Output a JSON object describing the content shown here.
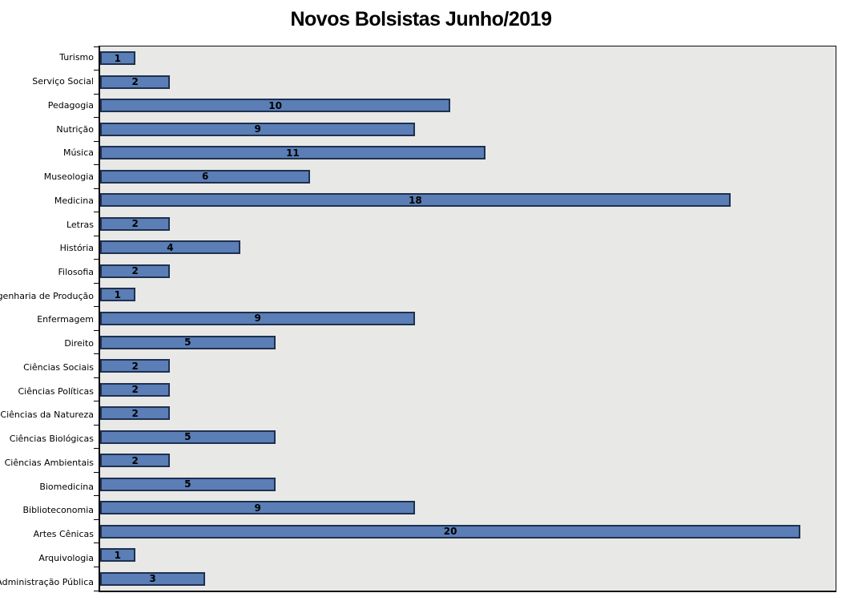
{
  "title": "Novos Bolsistas Junho/2019",
  "colors": {
    "bar_fill": "#5A7EB5",
    "bar_border": "#1F3050",
    "plot_background": "#E8E8E6",
    "plot_border": "#0D0D0D",
    "axis_line": "#000000",
    "title_color": "#000000",
    "label_color": "#000000"
  },
  "chart_data": {
    "type": "bar",
    "orientation": "horizontal",
    "title": "Novos Bolsistas Junho/2019",
    "categories": [
      "Turismo",
      "Serviço Social",
      "Pedagogia",
      "Nutrição",
      "Música",
      "Museologia",
      "Medicina",
      "Letras",
      "História",
      "Filosofia",
      "Engenharia de Produção",
      "Enfermagem",
      "Direito",
      "Ciências Sociais",
      "Ciências Políticas",
      "Ciências da Natureza",
      "Ciências Biológicas",
      "Ciências Ambientais",
      "Biomedicina",
      "Biblioteconomia",
      "Artes Cênicas",
      "Arquivologia",
      "Administração Pública"
    ],
    "values": [
      1,
      2,
      10,
      9,
      11,
      6,
      18,
      2,
      4,
      2,
      1,
      9,
      5,
      2,
      2,
      2,
      5,
      2,
      5,
      9,
      20,
      1,
      3
    ],
    "xlabel": "",
    "ylabel": "",
    "xlim": [
      0,
      21
    ],
    "grid": false,
    "legend": false,
    "x_axis_labels_visible": false,
    "value_labels_position": "inside-center"
  }
}
